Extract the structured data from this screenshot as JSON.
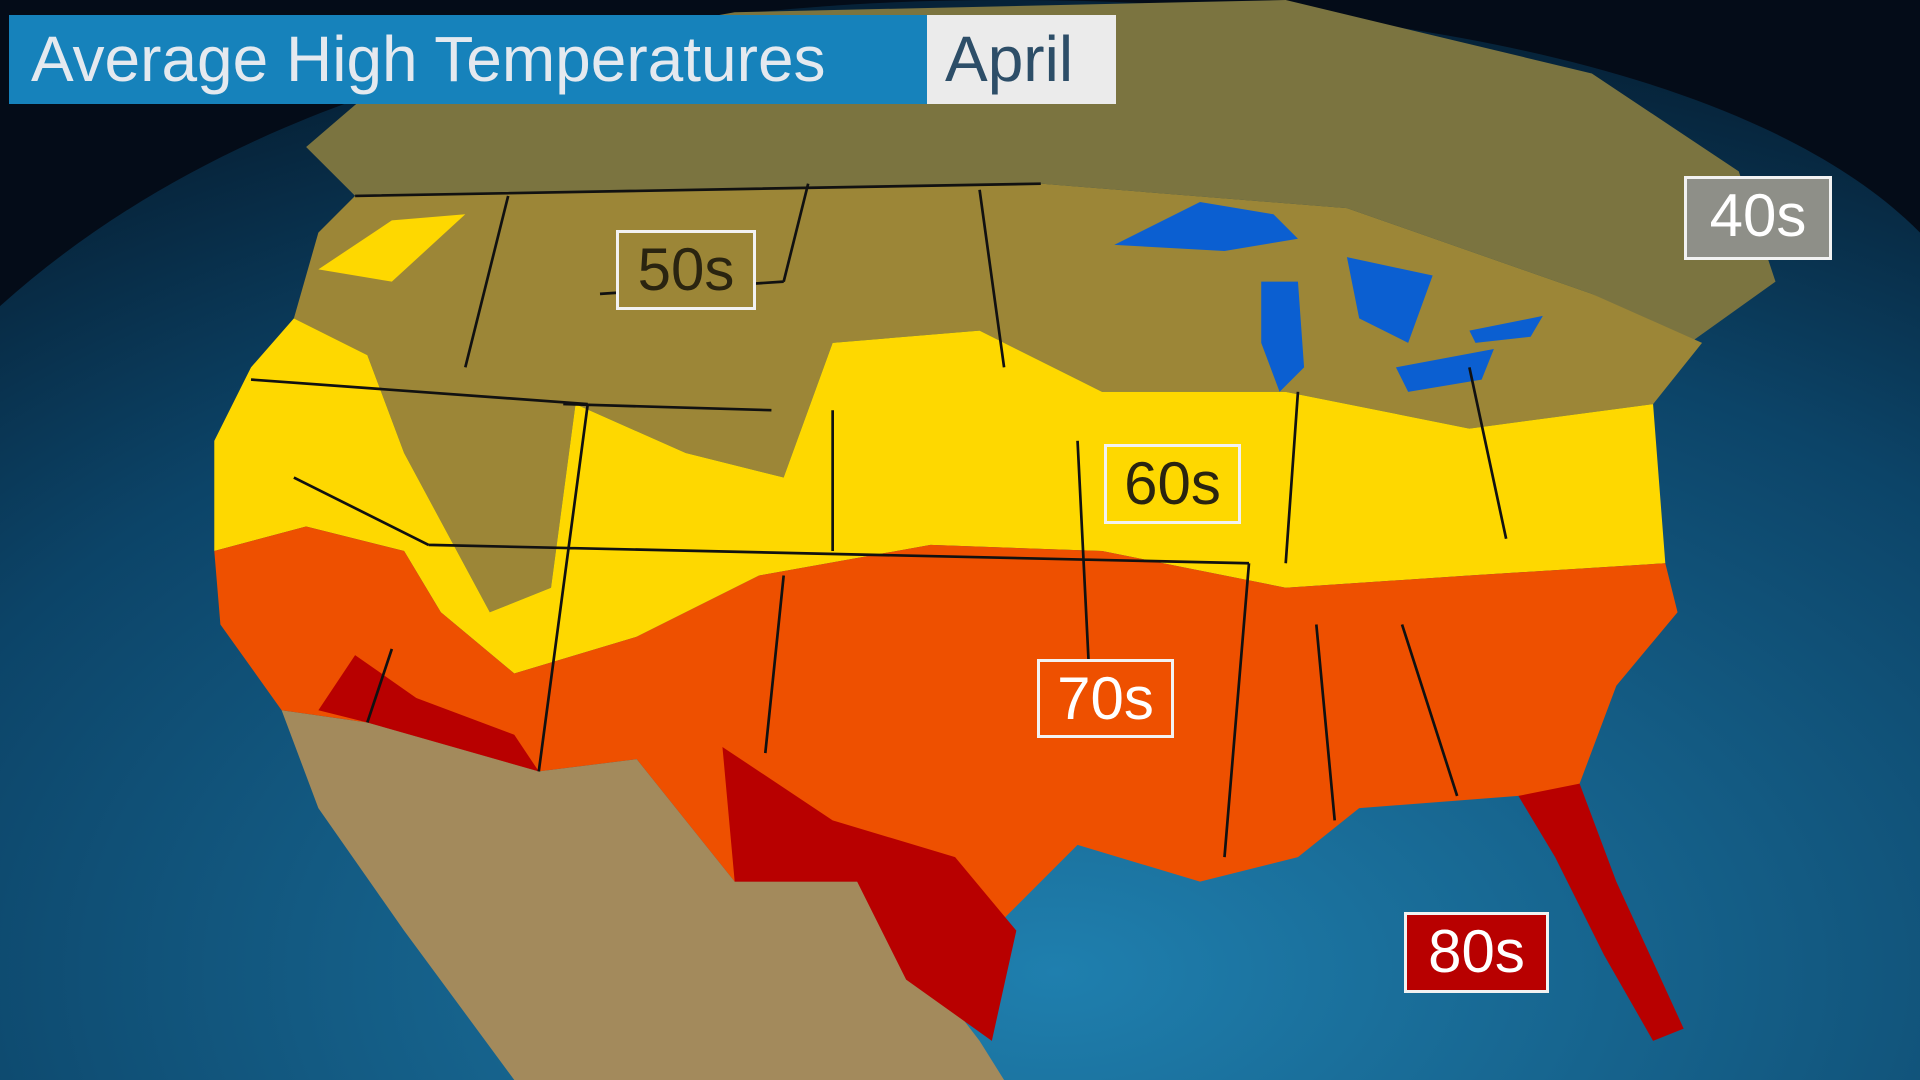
{
  "title": {
    "main": "Average High Temperatures",
    "month": "April"
  },
  "legend_colors": {
    "40s": "#a3a59c",
    "50s": "#9c8637",
    "60s": "#fed800",
    "70s": "#ee5000",
    "80s": "#b80000"
  },
  "labels": [
    {
      "text": "40s",
      "bg": "#8e8f88",
      "fg": "#ffffff"
    },
    {
      "text": "50s",
      "bg": "#9c8637",
      "fg": "#2a2410"
    },
    {
      "text": "60s",
      "bg": "#fed800",
      "fg": "#2a2410"
    },
    {
      "text": "70s",
      "bg": "#ee5000",
      "fg": "#ffffff"
    },
    {
      "text": "80s",
      "bg": "#b80000",
      "fg": "#ffffff"
    }
  ]
}
